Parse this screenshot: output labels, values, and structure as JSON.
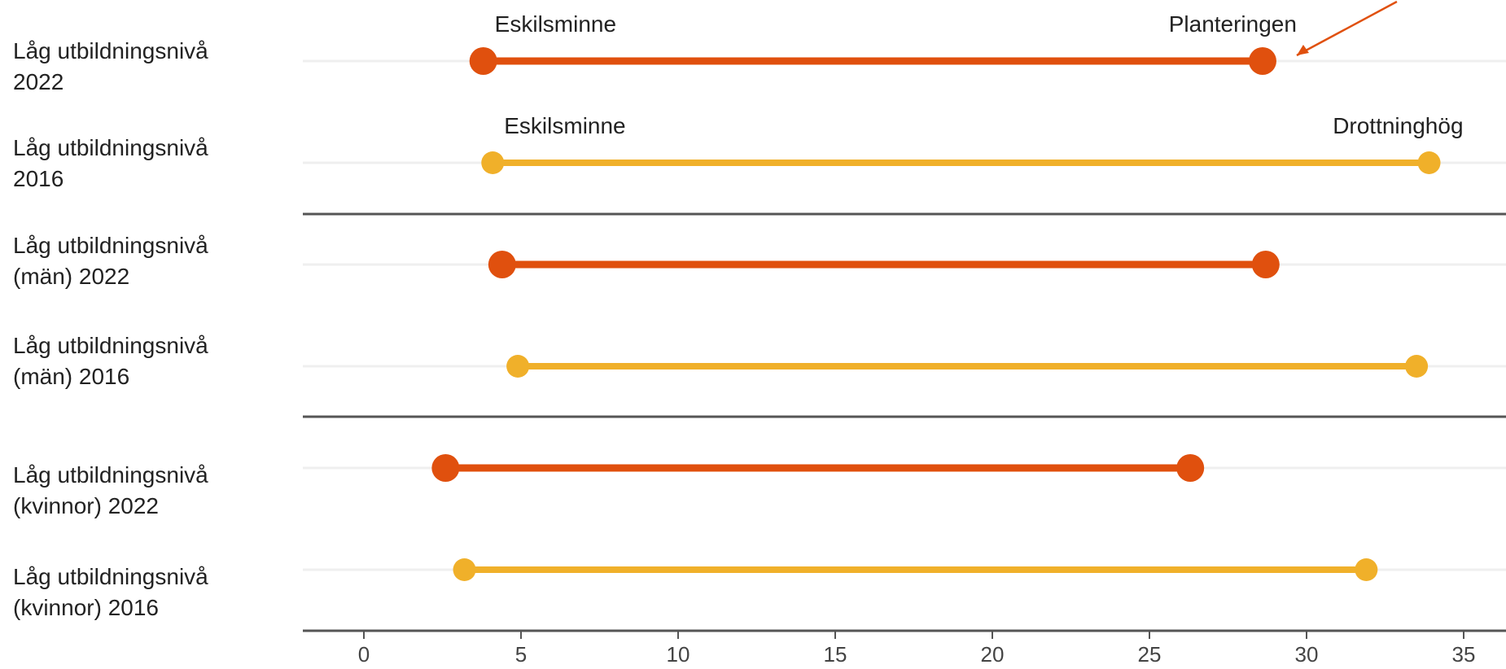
{
  "chart_data": {
    "type": "dumbbell",
    "xlim": [
      0,
      36
    ],
    "x_ticks": [
      0,
      5,
      10,
      15,
      20,
      25,
      30,
      35
    ],
    "grid": false,
    "colors": {
      "2022": "#e0500e",
      "2016": "#f0b02a",
      "axis": "#555555",
      "guide": "#efefef",
      "annotation": "#e0500e"
    },
    "rows": [
      {
        "label_line1": "Låg utbildningsnivå",
        "label_line2": "2022",
        "group": "2022",
        "min": 3.8,
        "max": 28.6,
        "min_label": "Eskilsminne",
        "max_label": "Planteringen"
      },
      {
        "label_line1": "Låg utbildningsnivå",
        "label_line2": "2016",
        "group": "2016",
        "min": 4.1,
        "max": 33.9,
        "min_label": "Eskilsminne",
        "max_label": "Drottninghög"
      },
      {
        "label_line1": "Låg utbildningsnivå",
        "label_line2": "(män) 2022",
        "group": "2022",
        "min": 4.4,
        "max": 28.7,
        "min_label": "",
        "max_label": ""
      },
      {
        "label_line1": "Låg utbildningsnivå",
        "label_line2": "(män) 2016",
        "group": "2016",
        "min": 4.9,
        "max": 33.5,
        "min_label": "",
        "max_label": ""
      },
      {
        "label_line1": "Låg utbildningsnivå",
        "label_line2": "(kvinnor) 2022",
        "group": "2022",
        "min": 2.6,
        "max": 26.3,
        "min_label": "",
        "max_label": ""
      },
      {
        "label_line1": "Låg utbildningsnivå",
        "label_line2": "(kvinnor) 2016",
        "group": "2016",
        "min": 3.2,
        "max": 31.9,
        "min_label": "",
        "max_label": ""
      }
    ],
    "annotations": [
      {
        "type": "arrow",
        "points_to": "Planteringen"
      }
    ]
  }
}
